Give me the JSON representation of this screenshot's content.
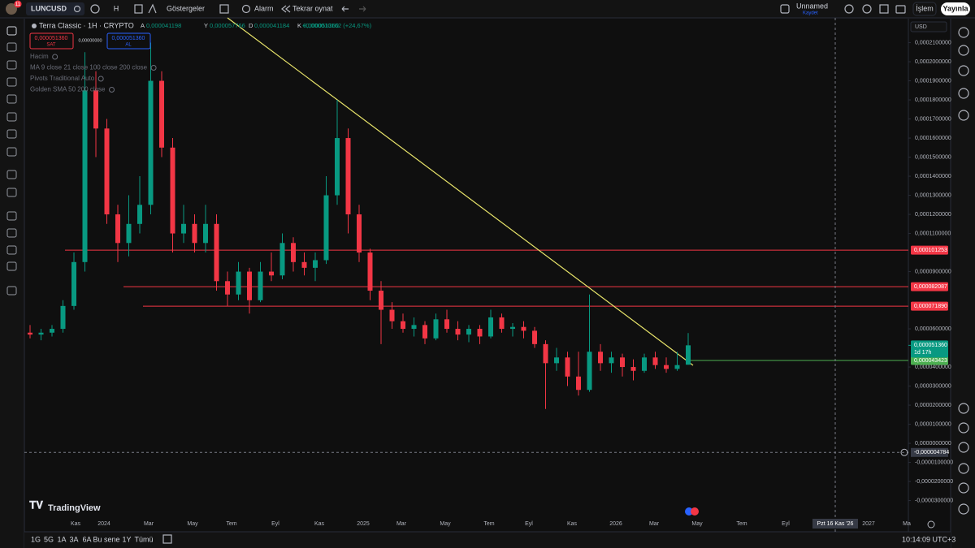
{
  "toolbar": {
    "notifications": "11",
    "symbol": "LUNCUSD",
    "interval": "H",
    "indicators": "Göstergeler",
    "alert": "Alarm",
    "replay": "Tekrar oynat",
    "layout_name": "Unnamed",
    "layout_status": "Kaydet",
    "trade": "İşlem",
    "publish": "Yayınla"
  },
  "legend": {
    "title": "Terra Classic · 1H · CRYPTO",
    "ohlc": [
      {
        "key": "A",
        "value": "0,000041198"
      },
      {
        "key": "Y",
        "value": "0,000057766"
      },
      {
        "key": "D",
        "value": "0,000041184"
      },
      {
        "key": "K",
        "value": "0,000051360"
      }
    ],
    "change": "+0,000010162 (+24,67%)",
    "sell_price": "0,000051360",
    "sell": "SAT",
    "spread": "0,00000000",
    "buy_price": "0,000051360",
    "buy": "AL",
    "indicators": [
      "Hacim",
      "MA 9 close 21 close 100 close 200 close",
      "Pivots Traditional Auto",
      "Golden SMA 50 200 close"
    ]
  },
  "branding": "TradingView",
  "bottom": {
    "ranges": [
      "1G",
      "5G",
      "1A",
      "3A",
      "6A",
      "Bu sene",
      "1Y",
      "Tümü"
    ],
    "clock": "10:14:09 UTC+3"
  },
  "chart_data": {
    "type": "candlestick",
    "currency": "USD",
    "up_color": "#089981",
    "down_color": "#f23645",
    "grid": false,
    "open": [
      5.8e-05,
      5.7e-05,
      5.8e-05,
      6e-05,
      7.2e-05,
      9.5e-05,
      0.000185,
      0.000165,
      0.00012,
      0.000105,
      0.000115,
      0.000125,
      0.00019,
      0.000155,
      0.00011,
      0.000115,
      0.000105,
      0.000115,
      8.5e-05,
      7.8e-05,
      9e-05,
      7.5e-05,
      9e-05,
      8.8e-05,
      0.000105,
      9.5e-05,
      9.2e-05,
      9.6e-05,
      0.00013,
      0.00016,
      0.00012,
      0.0001,
      8e-05,
      7e-05,
      6.4e-05,
      6e-05,
      6.2e-05,
      5.5e-05,
      6.5e-05,
      6e-05,
      5.7e-05,
      6e-05,
      5.6e-05,
      6.6e-05,
      6e-05,
      6.1e-05,
      5.9e-05,
      5.2e-05,
      4.2e-05,
      4.5e-05,
      3.5e-05,
      2.8e-05,
      4.8e-05,
      4.2e-05,
      4.5e-05,
      4e-05,
      3.8e-05,
      4.5e-05,
      4.1e-05,
      3.9e-05,
      4.1198e-05
    ],
    "high": [
      6.2e-05,
      6e-05,
      6.2e-05,
      7.5e-05,
      0.0001,
      0.000205,
      0.000195,
      0.00017,
      0.000125,
      0.00013,
      0.00014,
      0.00021,
      0.000195,
      0.00016,
      0.000125,
      0.00012,
      0.000125,
      0.00012,
      9e-05,
      9.5e-05,
      9.2e-05,
      9.5e-05,
      0.0001,
      0.00011,
      0.000108,
      0.0001,
      0.0001,
      0.00014,
      0.00018,
      0.000165,
      0.000125,
      0.000102,
      8.5e-05,
      7.4e-05,
      6.8e-05,
      6.6e-05,
      6.4e-05,
      6.8e-05,
      7e-05,
      6.4e-05,
      6.2e-05,
      6.2e-05,
      7e-05,
      6.8e-05,
      6.3e-05,
      6.4e-05,
      6.1e-05,
      5.4e-05,
      5e-05,
      4.8e-05,
      4.8e-05,
      7.8e-05,
      5.2e-05,
      4.8e-05,
      4.7e-05,
      4.4e-05,
      4.7e-05,
      4.8e-05,
      4.5e-05,
      4.8e-05,
      5.7766e-05
    ],
    "low": [
      5.5e-05,
      5.4e-05,
      5.6e-05,
      5.8e-05,
      7e-05,
      9e-05,
      0.00015,
      0.000115,
      9.5e-05,
      9.8e-05,
      0.00011,
      0.00012,
      0.00015,
      0.0001,
      0.000105,
      0.0001,
      0.0001,
      8e-05,
      7.2e-05,
      7.5e-05,
      6.8e-05,
      7.4e-05,
      8.5e-05,
      8.6e-05,
      9e-05,
      8.8e-05,
      8.5e-05,
      9.4e-05,
      0.000125,
      0.00011,
      9.5e-05,
      7.5e-05,
      5.2e-05,
      6e-05,
      5.8e-05,
      5.6e-05,
      5.2e-05,
      5.4e-05,
      5.8e-05,
      5.4e-05,
      5.3e-05,
      5.2e-05,
      5.5e-05,
      5.8e-05,
      5.6e-05,
      5.5e-05,
      5e-05,
      1.8e-05,
      3.8e-05,
      3e-05,
      2.5e-05,
      2.7e-05,
      3.8e-05,
      3.7e-05,
      3.5e-05,
      3.3e-05,
      3.7e-05,
      3.9e-05,
      3.7e-05,
      3.8e-05,
      4.1184e-05
    ],
    "close": [
      5.7e-05,
      5.8e-05,
      6e-05,
      7.2e-05,
      9.5e-05,
      0.000185,
      0.000165,
      0.00012,
      0.000105,
      0.000115,
      0.000125,
      0.00019,
      0.000155,
      0.00011,
      0.000115,
      0.000105,
      0.000115,
      8.5e-05,
      7.8e-05,
      9e-05,
      7.5e-05,
      9e-05,
      8.8e-05,
      0.000105,
      9.5e-05,
      9.2e-05,
      9.6e-05,
      0.00013,
      0.00016,
      0.00012,
      0.0001,
      8e-05,
      7e-05,
      6.4e-05,
      6e-05,
      6.2e-05,
      5.5e-05,
      6.5e-05,
      6e-05,
      5.7e-05,
      6e-05,
      5.6e-05,
      6.6e-05,
      6e-05,
      6.1e-05,
      5.9e-05,
      5.2e-05,
      4.2e-05,
      4.5e-05,
      3.5e-05,
      2.8e-05,
      4.8e-05,
      4.2e-05,
      4.5e-05,
      4e-05,
      3.8e-05,
      4.5e-05,
      4.1e-05,
      3.9e-05,
      4.1e-05,
      5.136e-05
    ],
    "ylim": [
      -3.87e-05,
      0.000223
    ],
    "yticks": [
      {
        "value": 0.00021,
        "label": "0,0002100000"
      },
      {
        "value": 0.0002,
        "label": "0,0002000000"
      },
      {
        "value": 0.00019,
        "label": "0,0001900000"
      },
      {
        "value": 0.00018,
        "label": "0,0001800000"
      },
      {
        "value": 0.00017,
        "label": "0,0001700000"
      },
      {
        "value": 0.00016,
        "label": "0,0001600000"
      },
      {
        "value": 0.00015,
        "label": "0,0001500000"
      },
      {
        "value": 0.00014,
        "label": "0,0001400000"
      },
      {
        "value": 0.00013,
        "label": "0,0001300000"
      },
      {
        "value": 0.00012,
        "label": "0,0001200000"
      },
      {
        "value": 0.00011,
        "label": "0,0001100000"
      },
      {
        "value": 9e-05,
        "label": "0,0000900000"
      },
      {
        "value": 6e-05,
        "label": "0,0000600000"
      },
      {
        "value": 4e-05,
        "label": "0,0000400000"
      },
      {
        "value": 3e-05,
        "label": "0,0000300000"
      },
      {
        "value": 2e-05,
        "label": "0,0000200000"
      },
      {
        "value": 1e-05,
        "label": "0,0000100000"
      },
      {
        "value": 0,
        "label": "0,0000000000"
      },
      {
        "value": -1e-05,
        "label": "-0,0000100000"
      },
      {
        "value": -2e-05,
        "label": "-0,0000200000"
      },
      {
        "value": -3e-05,
        "label": "-0,0000300000"
      }
    ],
    "time_labels": [
      "Kas",
      "2024",
      "Mar",
      "May",
      "Tem",
      "Eyl",
      "Kas",
      "2025",
      "Mar",
      "May",
      "Tem",
      "Eyl",
      "Kas",
      "2026",
      "Mar",
      "May",
      "Tem",
      "Eyl",
      "2027",
      "Ma"
    ],
    "price_lines": [
      {
        "value": 0.000101253,
        "label": "0,000101253",
        "color": "#f23645"
      },
      {
        "value": 8.2087e-05,
        "label": "0,000082087",
        "color": "#f23645"
      },
      {
        "value": 7.189e-05,
        "label": "0,000071890",
        "color": "#f23645"
      },
      {
        "value": 4.3423e-05,
        "label": "0,000043423",
        "color": "#4caf50"
      }
    ],
    "last_price": {
      "value": 5.136e-05,
      "label": "0,000051360",
      "countdown": "1d 17h"
    },
    "crosshair": {
      "value": -4.784e-06,
      "label": "-0,000004784",
      "time": "Pzt 16 Kas '26"
    }
  }
}
